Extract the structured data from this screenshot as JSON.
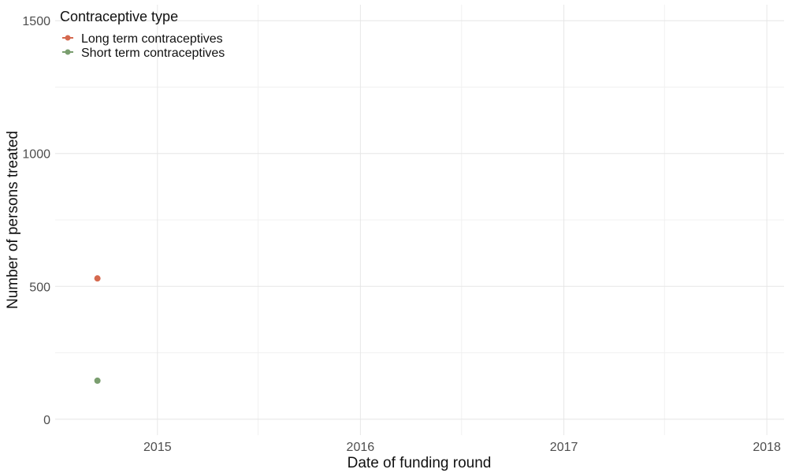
{
  "chart_data": {
    "type": "scatter",
    "xlabel": "Date of funding round",
    "ylabel": "Number of persons treated",
    "x_type": "date",
    "xlim": [
      "2014-07-01",
      "2018-02-01"
    ],
    "ylim": [
      -60,
      1560
    ],
    "x_ticks": [
      {
        "value": "2015-01-01",
        "label": "2015"
      },
      {
        "value": "2016-01-01",
        "label": "2016"
      },
      {
        "value": "2017-01-01",
        "label": "2017"
      },
      {
        "value": "2018-01-01",
        "label": "2018"
      }
    ],
    "x_minor_ticks": [
      "2015-07-01",
      "2016-07-01",
      "2017-07-01"
    ],
    "y_ticks": [
      0,
      500,
      1000,
      1500
    ],
    "y_minor_ticks": [
      250,
      750,
      1250
    ],
    "grid": true,
    "legend": {
      "title": "Contraceptive type",
      "placement": "top-left"
    },
    "series": [
      {
        "name": "Long term contraceptives",
        "color": "#d5694f",
        "points": [
          {
            "x": "2014-09-15",
            "y": 530
          }
        ]
      },
      {
        "name": "Short term contraceptives",
        "color": "#7a9e6f",
        "points": [
          {
            "x": "2014-09-15",
            "y": 145
          }
        ]
      }
    ]
  }
}
